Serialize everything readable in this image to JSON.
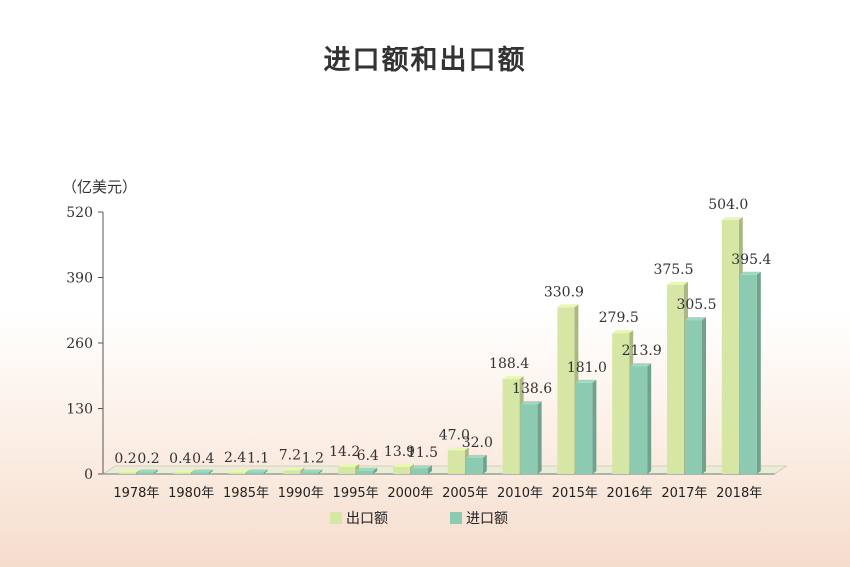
{
  "chart_data": {
    "type": "bar",
    "title": "进口额和出口额",
    "ylabel": "（亿美元）",
    "xlabel": "",
    "categories": [
      "1978年",
      "1980年",
      "1985年",
      "1990年",
      "1995年",
      "2000年",
      "2005年",
      "2010年",
      "2015年",
      "2016年",
      "2017年",
      "2018年"
    ],
    "series": [
      {
        "name": "出口额",
        "color": "#d6e6a4",
        "values": [
          0.2,
          0.4,
          2.4,
          7.2,
          14.2,
          13.9,
          47.0,
          188.4,
          330.9,
          279.5,
          375.5,
          504.0
        ],
        "labels": [
          "0.2",
          "0.4",
          "2.4",
          "7.2",
          "14.2",
          "13.9",
          "47.0",
          "188.4",
          "330.9",
          "279.5",
          "375.5",
          "504.0"
        ]
      },
      {
        "name": "进口额",
        "color": "#8ccbb2",
        "values": [
          0.2,
          0.4,
          1.1,
          1.2,
          6.4,
          11.5,
          32.0,
          138.6,
          181.0,
          213.9,
          305.5,
          395.4
        ],
        "labels": [
          "0.2",
          "0.4",
          "1.1",
          "1.2",
          "6.4",
          "11.5",
          "32.0",
          "138.6",
          "181.0",
          "213.9",
          "305.5",
          "395.4"
        ]
      }
    ],
    "ylim": [
      0,
      520
    ],
    "yticks": [
      0,
      130,
      260,
      390,
      520
    ],
    "grid": false,
    "legend_position": "bottom-center",
    "view": "3d"
  }
}
